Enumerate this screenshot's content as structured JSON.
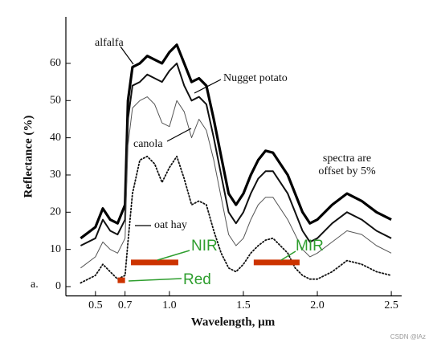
{
  "chart_data": {
    "type": "line",
    "xlabel": "Wavelength, µm",
    "ylabel": "Reflectance (%)",
    "panel": "a.",
    "note": [
      "spectra are",
      "offset by 5%"
    ],
    "watermark": "CSDN @lAz",
    "xlim": [
      0.3,
      2.57
    ],
    "ylim": [
      -2.5,
      72.5
    ],
    "xticks": [
      0.5,
      0.7,
      {
        "value": 1.0,
        "label": "1.0"
      },
      1.5,
      {
        "value": 2.0,
        "label": "2.0"
      },
      2.5
    ],
    "yticks": [
      0,
      10,
      20,
      30,
      40,
      50,
      60
    ],
    "x": [
      0.4,
      0.5,
      0.55,
      0.6,
      0.65,
      0.7,
      0.72,
      0.75,
      0.8,
      0.85,
      0.9,
      0.95,
      1.0,
      1.05,
      1.1,
      1.15,
      1.2,
      1.25,
      1.3,
      1.35,
      1.4,
      1.45,
      1.5,
      1.55,
      1.6,
      1.65,
      1.7,
      1.75,
      1.8,
      1.85,
      1.9,
      1.95,
      2.0,
      2.1,
      2.2,
      2.3,
      2.4,
      2.5
    ],
    "series": [
      {
        "name": "alfalfa",
        "color": "#000000",
        "style": "thick",
        "values": [
          13,
          16,
          21,
          18,
          17,
          22,
          50,
          59,
          60,
          62,
          61,
          60,
          63,
          65,
          60,
          55,
          56,
          54,
          45,
          35,
          25,
          22,
          25,
          30,
          34,
          36.5,
          36,
          33,
          30,
          25,
          20,
          17,
          18,
          22,
          25,
          23,
          20,
          18
        ]
      },
      {
        "name": "Nugget potato",
        "color": "#111111",
        "style": "medium",
        "values": [
          11,
          13,
          18,
          15,
          14,
          18,
          45,
          54,
          55,
          57,
          56,
          55,
          58,
          60,
          54,
          50,
          51,
          49,
          40,
          30,
          20,
          17,
          20,
          25,
          29,
          31,
          31,
          28,
          25,
          20,
          15,
          12,
          13,
          17,
          20,
          18,
          15,
          13
        ]
      },
      {
        "name": "canola",
        "color": "#555555",
        "style": "thin",
        "values": [
          5,
          8,
          12,
          10,
          9,
          13,
          38,
          48,
          50,
          51,
          49,
          44,
          43,
          50,
          47,
          40,
          45,
          42,
          34,
          24,
          14,
          11,
          13,
          18,
          22,
          24,
          24,
          21,
          18,
          14,
          10,
          8,
          9,
          12,
          15,
          14,
          11,
          9
        ]
      },
      {
        "name": "oat hay",
        "color": "#111111",
        "style": "dotted",
        "values": [
          1,
          3,
          6,
          4,
          2,
          3,
          12,
          25,
          34,
          35,
          33,
          28,
          32,
          35,
          29,
          22,
          23,
          22,
          15,
          9,
          5,
          4,
          6,
          9,
          11,
          12.5,
          13,
          11,
          9,
          5,
          3,
          2,
          2,
          4,
          7,
          6,
          4,
          3
        ]
      }
    ],
    "bands": [
      {
        "name": "NIR",
        "x": [
          0.74,
          1.06
        ],
        "y": 6.5
      },
      {
        "name": "MIR",
        "x": [
          1.57,
          1.88
        ],
        "y": 6.5
      },
      {
        "name": "Red",
        "x": [
          0.65,
          0.7
        ],
        "y": 1.7
      }
    ],
    "band_color": "#cc3300"
  }
}
